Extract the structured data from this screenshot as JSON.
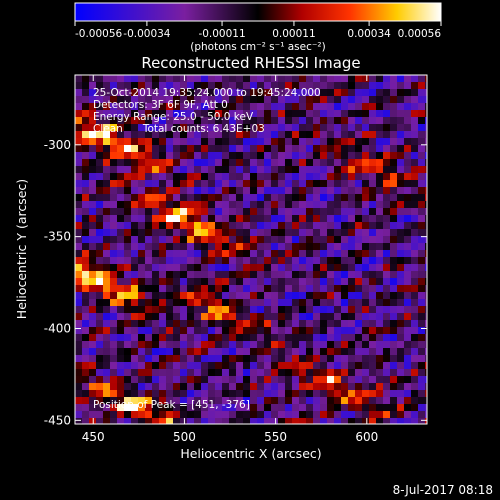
{
  "chart_data": {
    "type": "heatmap",
    "title": "Reconstructed RHESSI Image",
    "xlabel": "Heliocentric X (arcsec)",
    "ylabel": "Heliocentric Y (arcsec)",
    "xlim": [
      440,
      633
    ],
    "ylim": [
      -452,
      -262
    ],
    "x_ticks": [
      450,
      500,
      550,
      600
    ],
    "y_ticks": [
      -300,
      -350,
      -400,
      -450
    ],
    "colorbar": {
      "ticks": [
        "-0.00056",
        "-0.00034",
        "-0.00011",
        "0.00011",
        "0.00034",
        "0.00056"
      ],
      "units_label": "(photons cm⁻² s⁻¹ asec⁻²)",
      "range": [
        -0.00056,
        0.00056
      ],
      "colors": [
        "#0000ff",
        "#7a1fa0",
        "#000000",
        "#b00000",
        "#ff3300",
        "#ffcc00",
        "#ffffff"
      ]
    },
    "annotations": [
      "25-Oct-2014 19:35:24.000 to 19:45:24.000",
      "Detectors: 3F 6F 9F, Att 0",
      "Energy Range: 25.0 - 50.0 keV",
      "Clean      Total counts: 6.43E+03"
    ],
    "peak_text": "Position of Peak = [451, -376]",
    "bright_features": [
      {
        "x": 455,
        "y": -295,
        "level": 0.95
      },
      {
        "x": 500,
        "y": -340,
        "level": 0.85
      },
      {
        "x": 452,
        "y": -372,
        "level": 0.9
      },
      {
        "x": 520,
        "y": -390,
        "level": 0.55
      },
      {
        "x": 470,
        "y": -440,
        "level": 0.8
      },
      {
        "x": 600,
        "y": -310,
        "level": 0.5
      },
      {
        "x": 580,
        "y": -430,
        "level": 0.6
      }
    ]
  },
  "footer": {
    "timestamp": "8-Jul-2017 08:18"
  }
}
